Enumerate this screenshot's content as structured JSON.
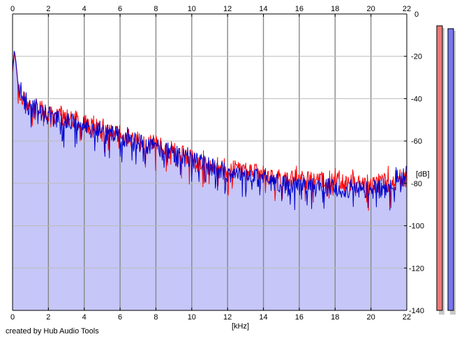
{
  "chart_data": {
    "type": "area",
    "xlabel": "[kHz]",
    "ylabel": "[dB]",
    "xlim": [
      0,
      22
    ],
    "ylim": [
      -140,
      0
    ],
    "x_ticks": [
      0,
      2,
      4,
      6,
      8,
      10,
      12,
      14,
      16,
      18,
      20,
      22
    ],
    "y_ticks": [
      0,
      -20,
      -40,
      -60,
      -80,
      -100,
      -120,
      -140
    ],
    "grid": true,
    "area_fill": "#c6c6f8",
    "series": [
      {
        "color": "#ff0000",
        "x": [
          0,
          0.1,
          0.2,
          0.3,
          0.5,
          0.8,
          1,
          1.5,
          2,
          2.5,
          3,
          3.5,
          4,
          5,
          6,
          7,
          8,
          9,
          10,
          11,
          12,
          13,
          14,
          15,
          16,
          17,
          18,
          19,
          20,
          21,
          22
        ],
        "values": [
          -28,
          -18,
          -24,
          -34,
          -40,
          -42,
          -43,
          -45,
          -47,
          -48,
          -49,
          -50,
          -52,
          -55,
          -57,
          -60,
          -62,
          -65,
          -68,
          -70,
          -73,
          -74,
          -76,
          -78,
          -78,
          -79,
          -79,
          -80,
          -80,
          -80,
          -79
        ]
      },
      {
        "color": "#0000cc",
        "x": [
          0,
          0.1,
          0.2,
          0.3,
          0.5,
          0.8,
          1,
          1.5,
          2,
          2.5,
          3,
          3.5,
          4,
          5,
          6,
          7,
          8,
          9,
          10,
          11,
          12,
          13,
          14,
          15,
          16,
          17,
          18,
          19,
          20,
          21,
          22
        ],
        "values": [
          -26,
          -17,
          -23,
          -33,
          -39,
          -43,
          -44,
          -46,
          -48,
          -50,
          -51,
          -52,
          -53,
          -56,
          -58,
          -61,
          -63,
          -66,
          -69,
          -72,
          -75,
          -76,
          -78,
          -80,
          -81,
          -82,
          -82,
          -83,
          -83,
          -83,
          -76
        ]
      }
    ],
    "level_meters": [
      {
        "color": "#f07878",
        "level": 1.0
      },
      {
        "color": "#7878f0",
        "level": 0.99
      }
    ]
  },
  "credit": "created by Hub Audio Tools"
}
